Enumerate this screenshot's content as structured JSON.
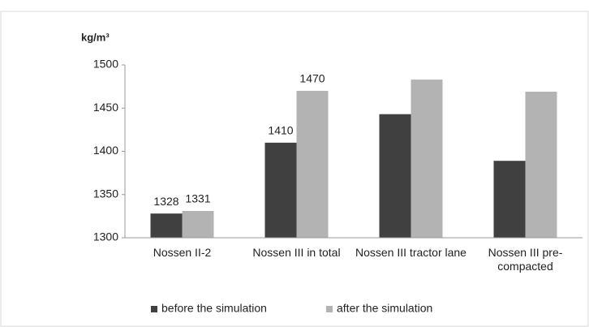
{
  "chart_data": {
    "type": "bar",
    "y_label": "kg/m³",
    "categories": [
      "Nossen II-2",
      "Nossen III in total",
      "Nossen III tractor lane",
      "Nossen III pre-compacted"
    ],
    "series": [
      {
        "name": "before the simulation",
        "color": "#404040",
        "values": [
          1328,
          1410,
          1443,
          1389
        ],
        "value_labels": [
          "1328",
          "1410",
          null,
          null
        ]
      },
      {
        "name": "after the simulation",
        "color": "#b3b3b3",
        "values": [
          1331,
          1470,
          1483,
          1469
        ],
        "value_labels": [
          "1331",
          "1470",
          null,
          null
        ]
      }
    ],
    "ylim": [
      1300,
      1500
    ],
    "yticks": [
      1300,
      1350,
      1400,
      1450,
      1500
    ],
    "grid": false,
    "legend": "bottom"
  }
}
